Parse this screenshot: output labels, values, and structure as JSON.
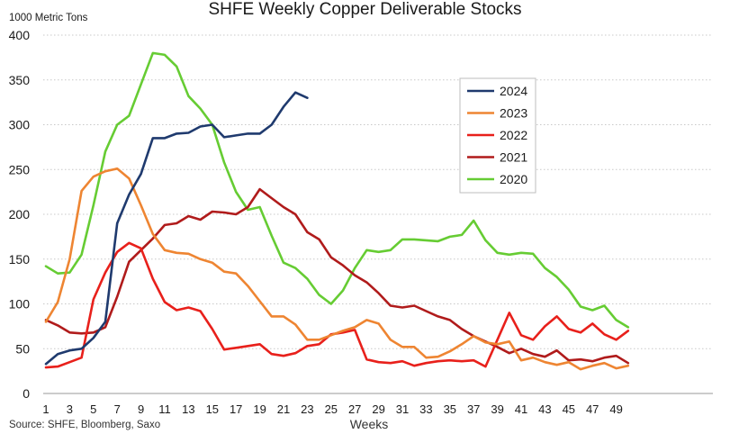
{
  "chart_data": {
    "type": "line",
    "title": "SHFE Weekly Copper Deliverable Stocks",
    "ylabel": "1000 Metric Tons",
    "xlabel": "Weeks",
    "source": "Source: SHFE, Bloomberg, Saxo",
    "ylim": [
      0,
      400
    ],
    "yticks": [
      0,
      50,
      100,
      150,
      200,
      250,
      300,
      350,
      400
    ],
    "xlim": [
      1,
      52
    ],
    "xticks": [
      1,
      3,
      5,
      7,
      9,
      11,
      13,
      15,
      17,
      19,
      21,
      23,
      25,
      27,
      29,
      31,
      33,
      35,
      37,
      39,
      41,
      43,
      45,
      47,
      49
    ],
    "grid": "horizontal dotted",
    "legend_position": "upper-middle",
    "series": [
      {
        "name": "2024",
        "color": "#1f3a6e",
        "values": [
          33,
          44,
          48,
          50,
          62,
          80,
          190,
          222,
          245,
          285,
          285,
          290,
          291,
          298,
          300,
          286,
          288,
          290,
          290,
          300,
          320,
          336,
          330
        ]
      },
      {
        "name": "2023",
        "color": "#ee8532",
        "values": [
          80,
          102,
          150,
          226,
          242,
          248,
          251,
          240,
          210,
          178,
          160,
          157,
          156,
          150,
          146,
          136,
          134,
          120,
          103,
          86,
          86,
          77,
          60,
          60,
          65,
          70,
          74,
          82,
          78,
          60,
          52,
          52,
          40,
          41,
          47,
          55,
          64,
          57,
          55,
          58,
          37,
          40,
          35,
          32,
          35,
          27,
          31,
          34,
          28,
          31
        ]
      },
      {
        "name": "2022",
        "color": "#e8201b",
        "values": [
          29,
          30,
          35,
          40,
          105,
          135,
          158,
          168,
          162,
          128,
          102,
          93,
          96,
          92,
          72,
          49,
          51,
          53,
          55,
          44,
          42,
          45,
          53,
          55,
          66,
          68,
          71,
          38,
          35,
          34,
          36,
          31,
          34,
          36,
          37,
          36,
          37,
          30,
          60,
          90,
          65,
          60,
          75,
          86,
          72,
          68,
          78,
          66,
          60,
          70
        ]
      },
      {
        "name": "2021",
        "color": "#b01b1b",
        "values": [
          82,
          76,
          68,
          67,
          68,
          74,
          108,
          147,
          160,
          173,
          188,
          190,
          198,
          194,
          203,
          202,
          200,
          208,
          228,
          218,
          208,
          200,
          180,
          172,
          152,
          143,
          132,
          124,
          112,
          98,
          96,
          98,
          92,
          86,
          82,
          72,
          64,
          58,
          52,
          45,
          50,
          44,
          41,
          48,
          37,
          38,
          36,
          40,
          42,
          34
        ]
      },
      {
        "name": "2020",
        "color": "#66cc33",
        "values": [
          142,
          134,
          135,
          155,
          210,
          270,
          300,
          310,
          345,
          380,
          378,
          365,
          332,
          318,
          300,
          258,
          225,
          205,
          208,
          176,
          146,
          140,
          128,
          110,
          100,
          115,
          140,
          160,
          158,
          160,
          172,
          172,
          171,
          170,
          175,
          177,
          193,
          171,
          157,
          155,
          157,
          156,
          140,
          130,
          116,
          97,
          93,
          98,
          82,
          74
        ]
      }
    ]
  }
}
